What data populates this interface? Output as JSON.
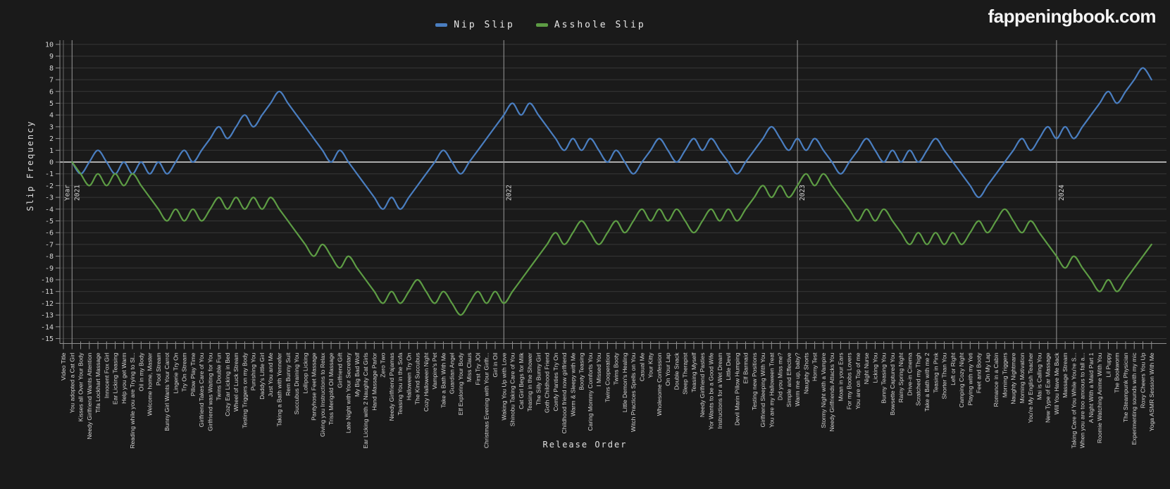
{
  "page": {
    "logo": "fappeningbook.com",
    "background": "#1a1a1a"
  },
  "colors": {
    "background": "#1a1a1a",
    "grid": "#373737",
    "zero_line": "#ababab",
    "axis": "#8f8f8f",
    "tick_text": "#d6d6d6",
    "nip_slip": "#4a7ec0",
    "asshole_slip": "#5d9c44"
  },
  "chart_data": {
    "type": "line",
    "title": "",
    "xlabel": "Release Order",
    "ylabel": "Slip Frequency",
    "ylim": [
      -15,
      10
    ],
    "grid": true,
    "legend_position": "top-center",
    "x_header_tick": "Video Title",
    "categories": [
      "You adopted a Cat Girl",
      "Kisses all Over Your Body",
      "Needy Girlfriend Wants Attention",
      "Tifa Lockhart Massage",
      "Innocent Fox Girl",
      "Ear Licking Teasing",
      "Help you get Warm",
      "Reading while you are Trying to Sl...",
      "Oil in my Body",
      "Welcome home, Master",
      "Pool Stream",
      "Bunny Girl Wants Your Carrot",
      "Lingerie Try On",
      "Try On Stream",
      "Pillow Play Time",
      "Girlfriend Takes Care of You",
      "Girlfriend was Waiting for You",
      "Twins Double Fun",
      "Cozy Ear Licking in Bed",
      "Wheel of Luck Stream",
      "Testing Triggers on my Body",
      "Punishing You",
      "Daddy's Little Girl",
      "Just You and Me",
      "Taking a Bath with Yennefer",
      "Rem Bunny Suit",
      "Succubus Draining You",
      "Lollipop Licking",
      "Pantyhose Feet Massage",
      "Giving you Instructions to Relax",
      "Triss Merigold Oil Massage",
      "Girlfriend Gift",
      "Late Night with Your Secretary",
      "My Big Bad Wolf",
      "Ear Licking with 2 Naughty Cat Girls",
      "Hand Massage Parlor",
      "Zero Two",
      "Needy Girlfriend Pajamas",
      "Teasing You in the Sofa",
      "Halloween Try On",
      "The Kind Succubus",
      "Cozy Halloween Night",
      "Vampire's Pet",
      "Take a Bath With Me",
      "Guardian Angel",
      "Elf Exploring Your Body",
      "Miss Claus",
      "First Try JOI",
      "Christmas Evening with Your Girlfr...",
      "Girl in Oil",
      "Waking You Up with Love",
      "Shinobu Taking Care of You",
      "Cat Girl Begs for Milk",
      "Teasing in the Shower",
      "The Silly Bunny Girl",
      "Goth Childhood Friend",
      "Comfy Panties Try On",
      "Childhood friend now girlfriend",
      "Warm & Sleepy with Me",
      "Booty Teasing",
      "Caring Mommy Comforts You",
      "I Missed You",
      "Twins Cooperation",
      "Twins Booty",
      "Little Demon's Healing",
      "Witch Practices Spells on You",
      "Casual Me",
      "Your Kitty",
      "Wholesome Confession",
      "On Your Lap",
      "Double Snack",
      "Sleep Therapist",
      "Teasing Myself",
      "Needy Girlfriend Pasties",
      "Yor Wants to be a Good Wife",
      "Instructions for a Wet Dream",
      "Little Devil",
      "Devil Marin Pillow Humping",
      "Elf Barmaid",
      "Testing new Positions",
      "Girlfriend Sleeping With You",
      "You are my Halloween Treat",
      "Did you Miss me?",
      "Simple and Effective",
      "Warm me up, baby?",
      "Naughty Shorts",
      "Horny Test",
      "Stormy Night with a Vampire",
      "Needy Girlfriends Attacks You",
      "Moan in your Ears",
      "For my Boobs Lovers",
      "You are on Top of me",
      "Night Nurse",
      "Licking You",
      "Bunny Teasing You",
      "Bowsette Captured You",
      "Rainy Spring Night",
      "Drive-in Cinema",
      "Scratched my Thigh",
      "Take a Bath with me 2",
      "Teasing in Pink",
      "Shorter Than You",
      "Left or Right",
      "Camping Cozy Night",
      "Playing with my Yeti",
      "Feet and Booty",
      "On My Lap",
      "Romance in a Cabin",
      "Morning Triggers",
      "Naughty Nightmare",
      "Morning Motivation",
      "You're My English Teacher",
      "Mai is Calling You",
      "New Type of Ear Massage",
      "Will You Have Me Back",
      "Massage Stream",
      "Taking Care of You While You're S...",
      "When you are too anxious to fall a...",
      "A Night With a Maid Part 1",
      "Roomie Watching Anime With You",
      "Lil Puppy",
      "The Bookworm",
      "The Steampunk Physician",
      "Experimenting sounds with my mic",
      "Roxy Cheers You Up",
      "Yoga ASMR Session With Me"
    ],
    "series": [
      {
        "name": "Nip Slip",
        "color": "#4a7ec0",
        "values": [
          0,
          -1,
          0,
          1,
          0,
          -1,
          0,
          -1,
          0,
          -1,
          0,
          -1,
          0,
          1,
          0,
          1,
          2,
          3,
          2,
          3,
          4,
          3,
          4,
          5,
          6,
          5,
          4,
          3,
          2,
          1,
          0,
          1,
          0,
          -1,
          -2,
          -3,
          -4,
          -3,
          -4,
          -3,
          -2,
          -1,
          0,
          1,
          0,
          -1,
          0,
          1,
          2,
          3,
          4,
          5,
          4,
          5,
          4,
          3,
          2,
          1,
          2,
          1,
          2,
          1,
          0,
          1,
          0,
          -1,
          0,
          1,
          2,
          1,
          0,
          1,
          2,
          1,
          2,
          1,
          0,
          -1,
          0,
          1,
          2,
          3,
          2,
          1,
          2,
          1,
          2,
          1,
          0,
          -1,
          0,
          1,
          2,
          1,
          0,
          1,
          0,
          1,
          0,
          1,
          2,
          1,
          0,
          -1,
          -2,
          -3,
          -2,
          -1,
          0,
          1,
          2,
          1,
          2,
          3,
          2,
          3,
          2,
          3,
          4,
          5,
          6,
          5,
          6,
          7,
          8,
          7
        ]
      },
      {
        "name": "Asshole Slip",
        "color": "#5d9c44",
        "values": [
          0,
          -1,
          -2,
          -1,
          -2,
          -1,
          -2,
          -1,
          -2,
          -3,
          -4,
          -5,
          -4,
          -5,
          -4,
          -5,
          -4,
          -3,
          -4,
          -3,
          -4,
          -3,
          -4,
          -3,
          -4,
          -5,
          -6,
          -7,
          -8,
          -7,
          -8,
          -9,
          -8,
          -9,
          -10,
          -11,
          -12,
          -11,
          -12,
          -11,
          -10,
          -11,
          -12,
          -11,
          -12,
          -13,
          -12,
          -11,
          -12,
          -11,
          -12,
          -11,
          -10,
          -9,
          -8,
          -7,
          -6,
          -7,
          -6,
          -5,
          -6,
          -7,
          -6,
          -5,
          -6,
          -5,
          -4,
          -5,
          -4,
          -5,
          -4,
          -5,
          -6,
          -5,
          -4,
          -5,
          -4,
          -5,
          -4,
          -3,
          -2,
          -3,
          -2,
          -3,
          -2,
          -1,
          -2,
          -1,
          -2,
          -3,
          -4,
          -5,
          -4,
          -5,
          -4,
          -5,
          -6,
          -7,
          -6,
          -7,
          -6,
          -7,
          -6,
          -7,
          -6,
          -5,
          -6,
          -5,
          -4,
          -5,
          -6,
          -5,
          -6,
          -7,
          -8,
          -9,
          -8,
          -9,
          -10,
          -11,
          -10,
          -11,
          -10,
          -9,
          -8,
          -7
        ]
      }
    ],
    "year_markers": [
      {
        "prefix": "Year",
        "label": "2021",
        "index": 1
      },
      {
        "label": "2022",
        "index": 51
      },
      {
        "label": "2023",
        "index": 85
      },
      {
        "label": "2024",
        "index": 115
      }
    ],
    "y_ticks": [
      10,
      9,
      8,
      7,
      6,
      5,
      4,
      3,
      2,
      1,
      0,
      -1,
      -2,
      -3,
      -4,
      -5,
      -6,
      -7,
      -8,
      -9,
      -10,
      -11,
      -12,
      -13,
      -14,
      -15
    ]
  }
}
